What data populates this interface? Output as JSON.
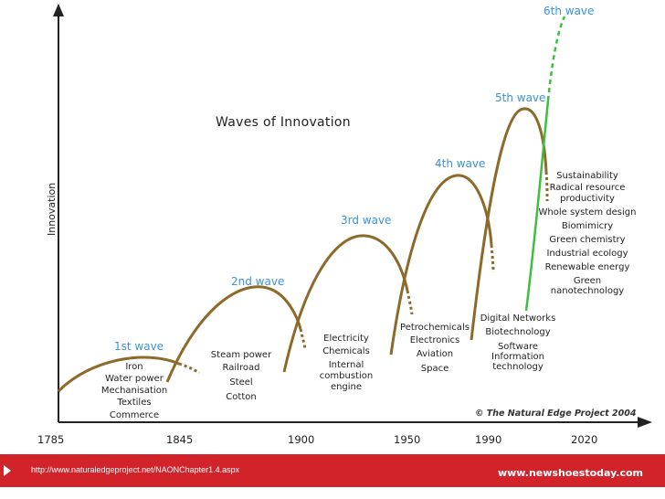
{
  "chart_data": {
    "type": "line",
    "title": "Waves of Innovation",
    "ylabel": "Innovation",
    "xlabel": "",
    "x_ticks": [
      "1785",
      "1845",
      "1900",
      "1950",
      "1990",
      "2020"
    ],
    "waves": [
      {
        "name": "1st wave",
        "items": [
          "Iron",
          "Water power",
          "Mechanisation",
          "Textiles",
          "Commerce"
        ]
      },
      {
        "name": "2nd wave",
        "items": [
          "Steam power",
          "Railroad",
          "Steel",
          "Cotton"
        ]
      },
      {
        "name": "3rd wave",
        "items": [
          "Electricity",
          "Chemicals",
          "Internal",
          "combustion",
          "engine"
        ]
      },
      {
        "name": "4th wave",
        "items": [
          "Petrochemicals",
          "Electronics",
          "Aviation",
          "Space"
        ]
      },
      {
        "name": "5th wave",
        "items": [
          "Digital Networks",
          "Biotechnology",
          "Software",
          "Information",
          "technology"
        ]
      },
      {
        "name": "6th wave",
        "items": [
          "Sustainability",
          "Radical resource",
          "productivity",
          "Whole system design",
          "Biomimicry",
          "Green chemistry",
          "Industrial ecology",
          "Renewable energy",
          "Green",
          "nanotechnology"
        ]
      }
    ],
    "colors": {
      "wave_curve": "#8c6a2a",
      "sixth_wave": "#3fbf3f",
      "wave_label": "#3a93d6",
      "axis": "#222222"
    }
  },
  "copyright": "© The Natural Edge Project 2004",
  "footer": {
    "url": "http://www.naturaledgeproject.net/NAONChapter1.4.aspx",
    "site": "www.newshoestoday.com",
    "color": "#d2232a"
  }
}
